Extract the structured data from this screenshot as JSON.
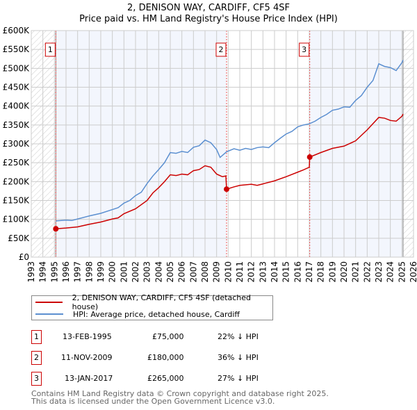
{
  "chart_data": {
    "type": "line",
    "title": "2, DENISON WAY, CARDIFF, CF5 4SF",
    "subtitle": "Price paid vs. HM Land Registry's House Price Index (HPI)",
    "xlim": [
      1993,
      2026
    ],
    "ylim": [
      0,
      600000
    ],
    "x_ticks": [
      "1993",
      "1994",
      "1995",
      "1996",
      "1997",
      "1998",
      "1999",
      "2000",
      "2001",
      "2002",
      "2003",
      "2004",
      "2005",
      "2006",
      "2007",
      "2008",
      "2009",
      "2010",
      "2011",
      "2012",
      "2013",
      "2014",
      "2015",
      "2016",
      "2017",
      "2018",
      "2019",
      "2020",
      "2021",
      "2022",
      "2023",
      "2024",
      "2025",
      "2026"
    ],
    "y_ticks": [
      {
        "v": 0,
        "label": "£0"
      },
      {
        "v": 50000,
        "label": "£50K"
      },
      {
        "v": 100000,
        "label": "£100K"
      },
      {
        "v": 150000,
        "label": "£150K"
      },
      {
        "v": 200000,
        "label": "£200K"
      },
      {
        "v": 250000,
        "label": "£250K"
      },
      {
        "v": 300000,
        "label": "£300K"
      },
      {
        "v": 350000,
        "label": "£350K"
      },
      {
        "v": 400000,
        "label": "£400K"
      },
      {
        "v": 450000,
        "label": "£450K"
      },
      {
        "v": 500000,
        "label": "£500K"
      },
      {
        "v": 550000,
        "label": "£550K"
      },
      {
        "v": 600000,
        "label": "£600K"
      }
    ],
    "grid": true,
    "legend_position": "below",
    "series": [
      {
        "name": "2, DENISON WAY, CARDIFF, CF5 4SF (detached house)",
        "color": "#cc0000",
        "x": [
          1995.12,
          1996,
          1997,
          1998,
          1999,
          2000,
          2000.5,
          2001,
          2002,
          2003,
          2003.5,
          2004,
          2004.5,
          2005,
          2005.5,
          2006,
          2006.5,
          2007,
          2007.5,
          2008,
          2008.5,
          2009,
          2009.5,
          2009.8,
          2009.86,
          2010.5,
          2011,
          2012,
          2012.5,
          2013,
          2014,
          2015,
          2016,
          2016.5,
          2017.0,
          2017.04,
          2018,
          2019,
          2020,
          2021,
          2022,
          2023,
          2023.5,
          2024,
          2024.5,
          2025,
          2025.1
        ],
        "y": [
          75000,
          77000,
          80000,
          87000,
          93000,
          101000,
          104000,
          115000,
          128000,
          150000,
          170000,
          184000,
          200000,
          218000,
          216000,
          220000,
          218000,
          229000,
          232000,
          242000,
          238000,
          220000,
          213000,
          215000,
          180000,
          186000,
          190000,
          193000,
          190000,
          194000,
          202000,
          213000,
          225000,
          231000,
          238000,
          265000,
          277000,
          288000,
          294000,
          308000,
          337000,
          370000,
          368000,
          362000,
          360000,
          373000,
          379000
        ]
      },
      {
        "name": "HPI: Average price, detached house, Cardiff",
        "color": "#5b8fd0",
        "x": [
          1995.12,
          1996,
          1996.5,
          1997,
          1998,
          1999,
          2000,
          2000.5,
          2001,
          2001.5,
          2002,
          2002.5,
          2003,
          2003.5,
          2004,
          2004.5,
          2005,
          2005.5,
          2006,
          2006.5,
          2007,
          2007.5,
          2008,
          2008.5,
          2009,
          2009.3,
          2009.86,
          2010.5,
          2011,
          2011.5,
          2012,
          2012.5,
          2013,
          2013.5,
          2014,
          2014.5,
          2015,
          2015.5,
          2016,
          2016.5,
          2017,
          2017.5,
          2018,
          2018.5,
          2019,
          2019.5,
          2020,
          2020.5,
          2021,
          2021.5,
          2022,
          2022.5,
          2023,
          2023.5,
          2024,
          2024.5,
          2025,
          2025.1
        ],
        "y": [
          96000,
          98000,
          97000,
          101000,
          109000,
          116000,
          126000,
          131000,
          143000,
          150000,
          163000,
          172000,
          195000,
          215000,
          232000,
          250000,
          277000,
          275000,
          280000,
          277000,
          291000,
          295000,
          310000,
          303000,
          285000,
          264000,
          279000,
          287000,
          283000,
          288000,
          285000,
          290000,
          292000,
          290000,
          303000,
          315000,
          326000,
          333000,
          345000,
          350000,
          353000,
          360000,
          370000,
          378000,
          389000,
          392000,
          398000,
          397000,
          415000,
          428000,
          450000,
          468000,
          512000,
          505000,
          502000,
          494000,
          515000,
          522000
        ]
      }
    ],
    "sales": [
      {
        "id": "1",
        "x": 1995.12,
        "y": 75000
      },
      {
        "id": "2",
        "x": 2009.86,
        "y": 180000
      },
      {
        "id": "3",
        "x": 2017.04,
        "y": 265000
      }
    ],
    "hatched_before": 1995.12,
    "hatched_after": 2025.1
  },
  "legend": {
    "property": "2, DENISON WAY, CARDIFF, CF5 4SF (detached house)",
    "hpi": "HPI: Average price, detached house, Cardiff"
  },
  "transactions": [
    {
      "id": "1",
      "date": "13-FEB-1995",
      "price": "£75,000",
      "hpi": "22% ↓ HPI"
    },
    {
      "id": "2",
      "date": "11-NOV-2009",
      "price": "£180,000",
      "hpi": "36% ↓ HPI"
    },
    {
      "id": "3",
      "date": "13-JAN-2017",
      "price": "£265,000",
      "hpi": "27% ↓ HPI"
    }
  ],
  "footer": {
    "line1": "Contains HM Land Registry data © Crown copyright and database right 2025.",
    "line2": "This data is licensed under the Open Government Licence v3.0."
  }
}
